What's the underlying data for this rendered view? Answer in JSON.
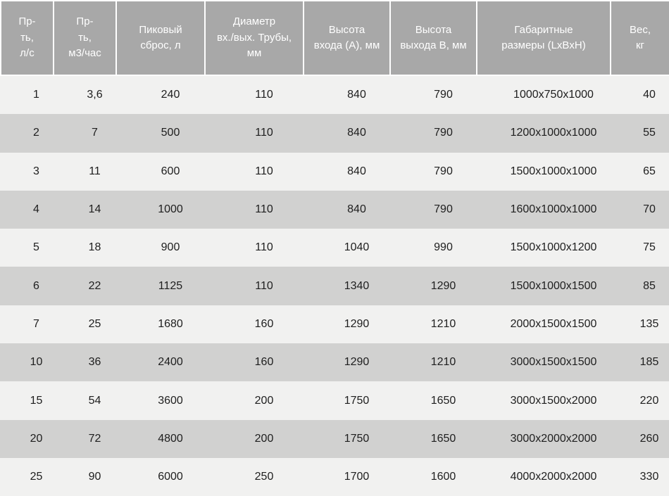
{
  "colors": {
    "header_bg": "#a8a8a8",
    "header_text": "#ffffff",
    "row_light": "#f1f1f0",
    "row_dark": "#d1d1d0",
    "separator": "#ffffff",
    "data_text": "#1e1e1e"
  },
  "table": {
    "columns": [
      {
        "label": "Пр-\nть,\nл/с"
      },
      {
        "label": "Пр-\nть,\nм3/час"
      },
      {
        "label": "Пиковый\nсброс, л"
      },
      {
        "label": "Диаметр\nвх./вых. Трубы,\nмм"
      },
      {
        "label": "Высота\nвхода (А), мм"
      },
      {
        "label": "Высота\nвыхода В, мм"
      },
      {
        "label": "Габаритные\nразмеры (LxBxH)"
      },
      {
        "label": "Вес,\nкг"
      }
    ],
    "rows": [
      [
        "1",
        "3,6",
        "240",
        "110",
        "840",
        "790",
        "1000x750x1000",
        "40"
      ],
      [
        "2",
        "7",
        "500",
        "110",
        "840",
        "790",
        "1200x1000x1000",
        "55"
      ],
      [
        "3",
        "11",
        "600",
        "110",
        "840",
        "790",
        "1500x1000x1000",
        "65"
      ],
      [
        "4",
        "14",
        "1000",
        "110",
        "840",
        "790",
        "1600x1000x1000",
        "70"
      ],
      [
        "5",
        "18",
        "900",
        "110",
        "1040",
        "990",
        "1500x1000x1200",
        "75"
      ],
      [
        "6",
        "22",
        "1125",
        "110",
        "1340",
        "1290",
        "1500x1000x1500",
        "85"
      ],
      [
        "7",
        "25",
        "1680",
        "160",
        "1290",
        "1210",
        "2000x1500x1500",
        "135"
      ],
      [
        "10",
        "36",
        "2400",
        "160",
        "1290",
        "1210",
        "3000x1500x1500",
        "185"
      ],
      [
        "15",
        "54",
        "3600",
        "200",
        "1750",
        "1650",
        "3000x1500x2000",
        "220"
      ],
      [
        "20",
        "72",
        "4800",
        "200",
        "1750",
        "1650",
        "3000x2000x2000",
        "260"
      ],
      [
        "25",
        "90",
        "6000",
        "250",
        "1700",
        "1600",
        "4000x2000x2000",
        "330"
      ]
    ]
  }
}
